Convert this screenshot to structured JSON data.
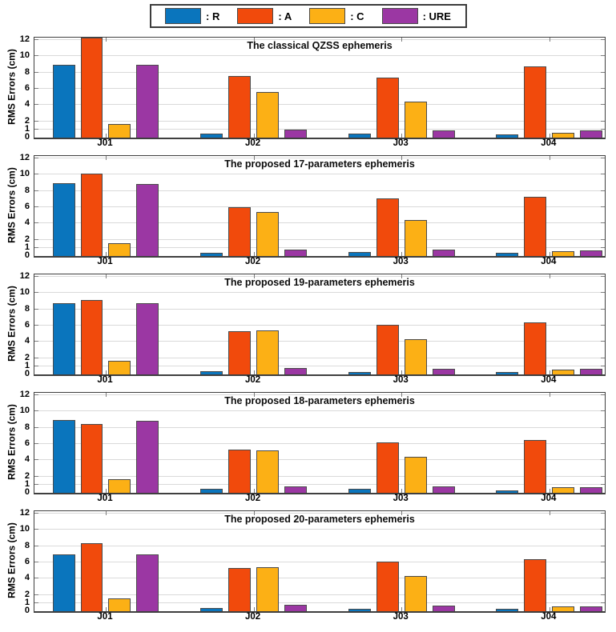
{
  "figure": {
    "axis_color": "#3f3f3f",
    "grid_color": "#dadada",
    "background": "#ffffff"
  },
  "legend": {
    "items": [
      {
        "series": "R",
        "label": ": R",
        "color": "#0a75bd"
      },
      {
        "series": "A",
        "label": ": A",
        "color": "#f14a0c"
      },
      {
        "series": "C",
        "label": ": C",
        "color": "#fcb015"
      },
      {
        "series": "URE",
        "label": ": URE",
        "color": "#9b37a3"
      }
    ]
  },
  "chart_data": [
    {
      "type": "bar",
      "title": "The classical QZSS ephemeris",
      "categories": [
        "J01",
        "J02",
        "J03",
        "J04"
      ],
      "series": [
        {
          "name": "R",
          "values": [
            9.0,
            0.5,
            0.5,
            0.4
          ]
        },
        {
          "name": "A",
          "values": [
            12.3,
            7.6,
            7.4,
            8.8
          ]
        },
        {
          "name": "C",
          "values": [
            1.7,
            5.6,
            4.4,
            0.6
          ]
        },
        {
          "name": "URE",
          "values": [
            9.0,
            1.0,
            0.9,
            0.9
          ]
        }
      ],
      "ylabel": "RMS Errors (cm)",
      "yticks": [
        0,
        1,
        2,
        4,
        6,
        8,
        10,
        12
      ],
      "ylim": [
        0,
        12.3
      ],
      "grid": true,
      "legend_position": "top-outside-shared"
    },
    {
      "type": "bar",
      "title": "The proposed 17-parameters ephemeris",
      "categories": [
        "J01",
        "J02",
        "J03",
        "J04"
      ],
      "series": [
        {
          "name": "R",
          "values": [
            9.0,
            0.4,
            0.5,
            0.35
          ]
        },
        {
          "name": "A",
          "values": [
            10.1,
            6.0,
            7.1,
            7.3
          ]
        },
        {
          "name": "C",
          "values": [
            1.6,
            5.4,
            4.4,
            0.6
          ]
        },
        {
          "name": "URE",
          "values": [
            8.9,
            0.8,
            0.8,
            0.7
          ]
        }
      ],
      "ylabel": "RMS Errors (cm)",
      "yticks": [
        0,
        1,
        2,
        4,
        6,
        8,
        10,
        12
      ],
      "ylim": [
        0,
        12.3
      ],
      "grid": true,
      "legend_position": "top-outside-shared"
    },
    {
      "type": "bar",
      "title": "The proposed 19-parameters ephemeris",
      "categories": [
        "J01",
        "J02",
        "J03",
        "J04"
      ],
      "series": [
        {
          "name": "R",
          "values": [
            8.8,
            0.4,
            0.3,
            0.3
          ]
        },
        {
          "name": "A",
          "values": [
            9.2,
            5.3,
            6.1,
            6.4
          ]
        },
        {
          "name": "C",
          "values": [
            1.7,
            5.4,
            4.3,
            0.6
          ]
        },
        {
          "name": "URE",
          "values": [
            8.8,
            0.75,
            0.7,
            0.65
          ]
        }
      ],
      "ylabel": "RMS Errors (cm)",
      "yticks": [
        0,
        1,
        2,
        4,
        6,
        8,
        10,
        12
      ],
      "ylim": [
        0,
        12.3
      ],
      "grid": true,
      "legend_position": "top-outside-shared"
    },
    {
      "type": "bar",
      "title": "The proposed 18-parameters ephemeris",
      "categories": [
        "J01",
        "J02",
        "J03",
        "J04"
      ],
      "series": [
        {
          "name": "R",
          "values": [
            9.0,
            0.45,
            0.45,
            0.3
          ]
        },
        {
          "name": "A",
          "values": [
            8.5,
            5.3,
            6.2,
            6.5
          ]
        },
        {
          "name": "C",
          "values": [
            1.7,
            5.2,
            4.4,
            0.65
          ]
        },
        {
          "name": "URE",
          "values": [
            8.9,
            0.75,
            0.75,
            0.65
          ]
        }
      ],
      "ylabel": "RMS Errors (cm)",
      "yticks": [
        0,
        1,
        2,
        4,
        6,
        8,
        10,
        12
      ],
      "ylim": [
        0,
        12.3
      ],
      "grid": true,
      "legend_position": "top-outside-shared"
    },
    {
      "type": "bar",
      "title": "The proposed 20-parameters ephemeris",
      "categories": [
        "J01",
        "J02",
        "J03",
        "J04"
      ],
      "series": [
        {
          "name": "R",
          "values": [
            7.0,
            0.4,
            0.3,
            0.3
          ]
        },
        {
          "name": "A",
          "values": [
            8.4,
            5.3,
            6.1,
            6.4
          ]
        },
        {
          "name": "C",
          "values": [
            1.6,
            5.4,
            4.3,
            0.6
          ]
        },
        {
          "name": "URE",
          "values": [
            7.0,
            0.8,
            0.7,
            0.6
          ]
        }
      ],
      "ylabel": "RMS Errors (cm)",
      "yticks": [
        0,
        1,
        2,
        4,
        6,
        8,
        10,
        12
      ],
      "ylim": [
        0,
        12.3
      ],
      "grid": true,
      "legend_position": "top-outside-shared"
    }
  ]
}
